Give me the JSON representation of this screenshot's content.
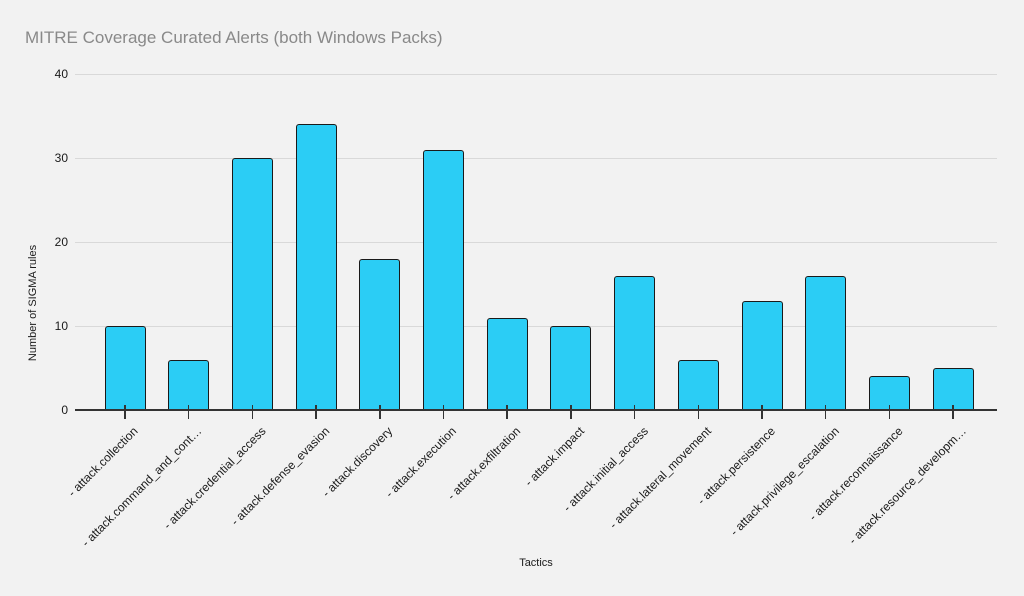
{
  "page": {
    "background_color": "#f2f2f2"
  },
  "chart_data": {
    "type": "bar",
    "title": "MITRE Coverage Curated Alerts (both Windows Packs)",
    "xlabel": "Tactics",
    "ylabel": "Number of SIGMA rules",
    "ylim": [
      0,
      40
    ],
    "yticks": [
      0,
      10,
      20,
      30,
      40
    ],
    "grid": true,
    "legend_position": "none",
    "categories": [
      "- attack.collection",
      "- attack.command_and_cont…",
      "- attack.credential_access",
      "- attack.defense_evasion",
      "- attack.discovery",
      "- attack.execution",
      "- attack.exfiltration",
      "- attack.impact",
      "- attack.initial_access",
      "- attack.lateral_movement",
      "- attack.persistence",
      "- attack.privilege_escalation",
      "- attack.reconnaissance",
      "- attack.resource_developm…"
    ],
    "values": [
      10,
      6,
      30,
      34,
      18,
      31,
      11,
      10,
      16,
      6,
      13,
      16,
      4,
      5
    ],
    "colors": {
      "bar_fill": "#2bcdf5",
      "bar_border": "#1a1a1a",
      "grid_line": "#d9d9d9",
      "axis_line": "#333333",
      "title_text": "#898989",
      "axis_text": "#1a1a1a",
      "background": "#f2f2f2"
    }
  }
}
